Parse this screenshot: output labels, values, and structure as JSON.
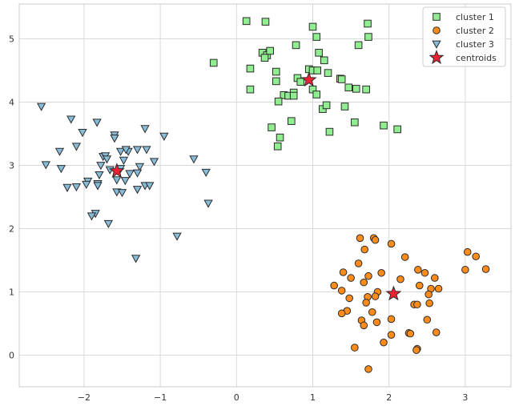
{
  "chart_data": {
    "type": "scatter",
    "title": "",
    "xlabel": "",
    "ylabel": "",
    "xlim": [
      -2.85,
      3.6
    ],
    "ylim": [
      -0.5,
      5.55
    ],
    "grid": true,
    "legend_position": "top-right",
    "xticks": [
      -2,
      -1,
      0,
      1,
      2,
      3
    ],
    "yticks": [
      0,
      1,
      2,
      3,
      4,
      5
    ],
    "xtick_labels": [
      "−2",
      "−1",
      "0",
      "1",
      "2",
      "3"
    ],
    "ytick_labels": [
      "0",
      "1",
      "2",
      "3",
      "4",
      "5"
    ],
    "series": [
      {
        "name": "cluster 1",
        "marker": "square",
        "color": "#90ee90",
        "points": [
          [
            0.13,
            5.28
          ],
          [
            0.38,
            5.27
          ],
          [
            1.0,
            5.19
          ],
          [
            1.72,
            5.24
          ],
          [
            1.05,
            5.03
          ],
          [
            1.73,
            5.03
          ],
          [
            0.18,
            4.53
          ],
          [
            -0.3,
            4.62
          ],
          [
            0.34,
            4.78
          ],
          [
            0.4,
            4.74
          ],
          [
            0.44,
            4.81
          ],
          [
            0.37,
            4.7
          ],
          [
            0.78,
            4.9
          ],
          [
            1.08,
            4.78
          ],
          [
            1.15,
            4.66
          ],
          [
            1.6,
            4.9
          ],
          [
            0.52,
            4.48
          ],
          [
            0.95,
            4.52
          ],
          [
            1.0,
            4.5
          ],
          [
            1.06,
            4.5
          ],
          [
            1.2,
            4.46
          ],
          [
            0.8,
            4.38
          ],
          [
            0.52,
            4.33
          ],
          [
            0.84,
            4.32
          ],
          [
            1.0,
            4.2
          ],
          [
            1.05,
            4.12
          ],
          [
            1.36,
            4.37
          ],
          [
            1.38,
            4.36
          ],
          [
            1.47,
            4.23
          ],
          [
            1.57,
            4.21
          ],
          [
            1.7,
            4.2
          ],
          [
            0.18,
            4.2
          ],
          [
            0.62,
            4.11
          ],
          [
            0.68,
            4.1
          ],
          [
            0.75,
            4.15
          ],
          [
            0.55,
            4.01
          ],
          [
            0.75,
            4.1
          ],
          [
            1.13,
            3.89
          ],
          [
            1.18,
            3.95
          ],
          [
            1.42,
            3.93
          ],
          [
            0.72,
            3.7
          ],
          [
            1.55,
            3.68
          ],
          [
            0.46,
            3.6
          ],
          [
            1.22,
            3.53
          ],
          [
            1.93,
            3.63
          ],
          [
            2.11,
            3.57
          ],
          [
            0.57,
            3.44
          ],
          [
            0.54,
            3.3
          ]
        ]
      },
      {
        "name": "cluster 2",
        "marker": "circle",
        "color": "#ff8c1a",
        "points": [
          [
            1.62,
            1.85
          ],
          [
            1.8,
            1.85
          ],
          [
            1.82,
            1.82
          ],
          [
            2.03,
            1.76
          ],
          [
            1.68,
            1.67
          ],
          [
            2.21,
            1.55
          ],
          [
            3.03,
            1.63
          ],
          [
            3.14,
            1.56
          ],
          [
            1.6,
            1.45
          ],
          [
            1.4,
            1.31
          ],
          [
            2.38,
            1.35
          ],
          [
            2.47,
            1.3
          ],
          [
            3.0,
            1.35
          ],
          [
            3.27,
            1.36
          ],
          [
            1.5,
            1.22
          ],
          [
            1.73,
            1.25
          ],
          [
            1.9,
            1.3
          ],
          [
            2.15,
            1.2
          ],
          [
            2.6,
            1.22
          ],
          [
            1.28,
            1.1
          ],
          [
            1.67,
            1.15
          ],
          [
            2.4,
            1.1
          ],
          [
            2.55,
            1.05
          ],
          [
            2.65,
            1.05
          ],
          [
            1.38,
            1.02
          ],
          [
            1.85,
            1.0
          ],
          [
            2.52,
            0.96
          ],
          [
            1.48,
            0.9
          ],
          [
            1.72,
            0.92
          ],
          [
            1.82,
            0.93
          ],
          [
            1.7,
            0.83
          ],
          [
            2.33,
            0.8
          ],
          [
            2.37,
            0.8
          ],
          [
            2.53,
            0.82
          ],
          [
            1.45,
            0.7
          ],
          [
            1.78,
            0.68
          ],
          [
            1.38,
            0.66
          ],
          [
            2.03,
            0.57
          ],
          [
            2.5,
            0.56
          ],
          [
            1.64,
            0.55
          ],
          [
            1.84,
            0.52
          ],
          [
            1.67,
            0.47
          ],
          [
            2.26,
            0.35
          ],
          [
            2.28,
            0.34
          ],
          [
            2.03,
            0.32
          ],
          [
            2.62,
            0.36
          ],
          [
            1.93,
            0.2
          ],
          [
            1.55,
            0.12
          ],
          [
            2.37,
            0.1
          ],
          [
            2.36,
            0.08
          ],
          [
            1.73,
            -0.22
          ]
        ]
      },
      {
        "name": "cluster 3",
        "marker": "triangle-down",
        "color": "#87bdd8",
        "points": [
          [
            -2.56,
            3.93
          ],
          [
            -2.17,
            3.73
          ],
          [
            -1.83,
            3.68
          ],
          [
            -1.2,
            3.58
          ],
          [
            -2.02,
            3.52
          ],
          [
            -1.6,
            3.48
          ],
          [
            -0.95,
            3.46
          ],
          [
            -1.6,
            3.43
          ],
          [
            -2.1,
            3.3
          ],
          [
            -1.42,
            3.22
          ],
          [
            -1.18,
            3.25
          ],
          [
            -2.32,
            3.22
          ],
          [
            -1.52,
            3.22
          ],
          [
            -1.45,
            3.25
          ],
          [
            -1.3,
            3.25
          ],
          [
            -1.75,
            3.14
          ],
          [
            -1.72,
            3.15
          ],
          [
            -1.7,
            3.1
          ],
          [
            -1.48,
            3.08
          ],
          [
            -0.56,
            3.1
          ],
          [
            -1.08,
            3.06
          ],
          [
            -2.5,
            3.01
          ],
          [
            -1.78,
            3.0
          ],
          [
            -1.27,
            2.98
          ],
          [
            -2.3,
            2.95
          ],
          [
            -1.66,
            2.93
          ],
          [
            -1.52,
            2.95
          ],
          [
            -1.4,
            2.87
          ],
          [
            -1.3,
            2.88
          ],
          [
            -0.4,
            2.89
          ],
          [
            -1.8,
            2.85
          ],
          [
            -1.95,
            2.75
          ],
          [
            -1.57,
            2.77
          ],
          [
            -1.46,
            2.76
          ],
          [
            -1.82,
            2.71
          ],
          [
            -1.82,
            2.68
          ],
          [
            -1.97,
            2.7
          ],
          [
            -2.1,
            2.66
          ],
          [
            -2.22,
            2.65
          ],
          [
            -1.2,
            2.68
          ],
          [
            -1.14,
            2.68
          ],
          [
            -1.3,
            2.62
          ],
          [
            -1.57,
            2.58
          ],
          [
            -1.5,
            2.57
          ],
          [
            -0.37,
            2.4
          ],
          [
            -1.85,
            2.24
          ],
          [
            -1.9,
            2.2
          ],
          [
            -1.68,
            2.08
          ],
          [
            -0.78,
            1.88
          ],
          [
            -1.32,
            1.53
          ]
        ]
      },
      {
        "name": "centroids",
        "marker": "star",
        "color": "#ee2233",
        "points": [
          [
            0.95,
            4.35
          ],
          [
            2.06,
            0.97
          ],
          [
            -1.57,
            2.91
          ]
        ]
      }
    ]
  }
}
